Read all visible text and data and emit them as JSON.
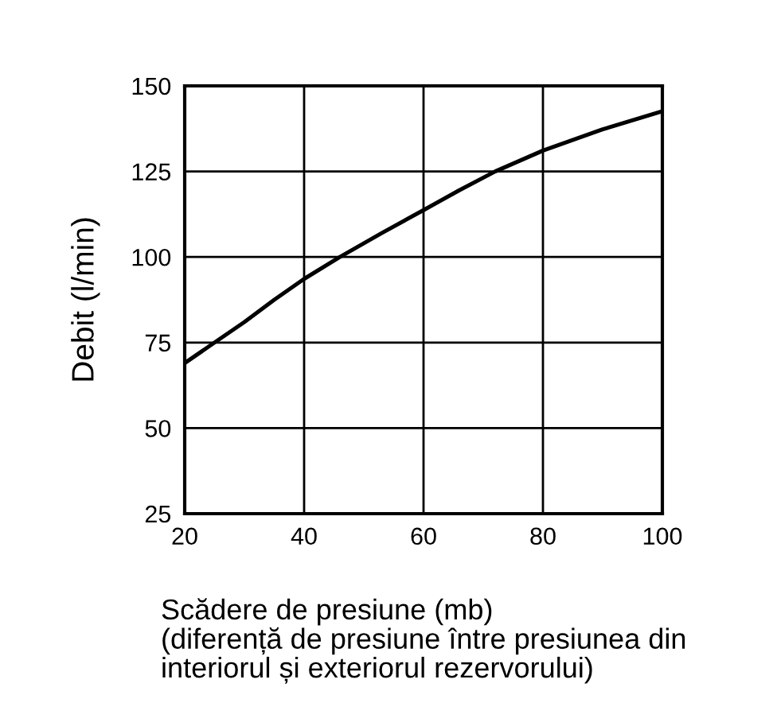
{
  "chart_data": {
    "type": "line",
    "xlabel": "Scădere de presiune (mb)\n(diferență de presiune între presiunea din\ninteriorul și exteriorul rezervorului)",
    "ylabel": "Debit (l/min)",
    "x": [
      20,
      25,
      30,
      35,
      40,
      46,
      53,
      60,
      66,
      72,
      80,
      90,
      100
    ],
    "series": [
      {
        "color": "#000000",
        "values": [
          69,
          75,
          81,
          87.5,
          93.6,
          100,
          107,
          113.7,
          119.5,
          125,
          131.1,
          137.3,
          142.6
        ]
      }
    ],
    "xlim": [
      20,
      100
    ],
    "ylim": [
      25,
      150
    ],
    "xticks": [
      20,
      40,
      60,
      80,
      100
    ],
    "yticks": [
      25,
      50,
      75,
      100,
      125,
      150
    ],
    "grid": true,
    "marker": "none",
    "line_style": "solid"
  }
}
